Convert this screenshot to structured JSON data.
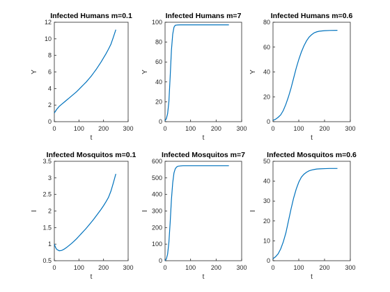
{
  "chart_data": [
    {
      "type": "line",
      "title": "Infected Humans m=0.1",
      "xlabel": "t",
      "ylabel": "Y",
      "xlim": [
        0,
        300
      ],
      "ylim": [
        0,
        12
      ],
      "xticks": [
        0,
        100,
        200,
        300
      ],
      "yticks": [
        0,
        2,
        4,
        6,
        8,
        10,
        12
      ],
      "color": "#0072bd",
      "x": [
        0,
        10,
        20,
        30,
        40,
        50,
        60,
        70,
        80,
        90,
        100,
        110,
        120,
        130,
        140,
        150,
        160,
        170,
        180,
        190,
        200,
        210,
        220,
        230,
        240,
        250
      ],
      "y": [
        1.05,
        1.5,
        1.85,
        2.1,
        2.35,
        2.6,
        2.85,
        3.1,
        3.35,
        3.6,
        3.9,
        4.2,
        4.5,
        4.8,
        5.15,
        5.5,
        5.9,
        6.3,
        6.75,
        7.2,
        7.7,
        8.2,
        8.75,
        9.35,
        10.2,
        11.1
      ]
    },
    {
      "type": "line",
      "title": "Infected Humans m=7",
      "xlabel": "t",
      "ylabel": "Y",
      "xlim": [
        0,
        300
      ],
      "ylim": [
        0,
        100
      ],
      "xticks": [
        0,
        100,
        200,
        300
      ],
      "yticks": [
        0,
        20,
        40,
        60,
        80,
        100
      ],
      "color": "#0072bd",
      "x": [
        0,
        5,
        10,
        15,
        20,
        25,
        30,
        35,
        40,
        50,
        60,
        80,
        100,
        150,
        200,
        250
      ],
      "y": [
        1,
        3,
        8,
        20,
        45,
        72,
        88,
        95,
        97,
        97.3,
        97.4,
        97.4,
        97.4,
        97.4,
        97.4,
        97.4
      ]
    },
    {
      "type": "line",
      "title": "Infected Humans m=0.6",
      "xlabel": "t",
      "ylabel": "Y",
      "xlim": [
        0,
        300
      ],
      "ylim": [
        0,
        80
      ],
      "xticks": [
        0,
        100,
        200,
        300
      ],
      "yticks": [
        0,
        20,
        40,
        60,
        80
      ],
      "color": "#0072bd",
      "x": [
        0,
        10,
        20,
        30,
        40,
        50,
        60,
        70,
        80,
        90,
        100,
        110,
        120,
        130,
        140,
        150,
        160,
        170,
        180,
        200,
        220,
        250
      ],
      "y": [
        1,
        2,
        3.5,
        5.5,
        9,
        14,
        20,
        27,
        35,
        43,
        50,
        56,
        61,
        65,
        68,
        70,
        71.5,
        72.3,
        72.8,
        73.2,
        73.4,
        73.5
      ]
    },
    {
      "type": "line",
      "title": "Infected Mosquitos m=0.1",
      "xlabel": "t",
      "ylabel": "I",
      "xlim": [
        0,
        300
      ],
      "ylim": [
        0.5,
        3.5
      ],
      "xticks": [
        0,
        100,
        200,
        300
      ],
      "yticks": [
        0.5,
        1,
        1.5,
        2,
        2.5,
        3,
        3.5
      ],
      "color": "#0072bd",
      "x": [
        0,
        5,
        10,
        20,
        30,
        40,
        50,
        60,
        70,
        80,
        90,
        100,
        110,
        120,
        130,
        140,
        150,
        160,
        170,
        180,
        190,
        200,
        210,
        220,
        230,
        240,
        250
      ],
      "y": [
        1.0,
        0.9,
        0.84,
        0.8,
        0.81,
        0.85,
        0.9,
        0.96,
        1.02,
        1.09,
        1.16,
        1.24,
        1.32,
        1.4,
        1.48,
        1.57,
        1.66,
        1.75,
        1.85,
        1.95,
        2.05,
        2.16,
        2.28,
        2.41,
        2.6,
        2.85,
        3.12
      ]
    },
    {
      "type": "line",
      "title": "Infected Mosquitos m=7",
      "xlabel": "t",
      "ylabel": "I",
      "xlim": [
        0,
        300
      ],
      "ylim": [
        0,
        600
      ],
      "xticks": [
        0,
        100,
        200,
        300
      ],
      "yticks": [
        0,
        100,
        200,
        300,
        400,
        500,
        600
      ],
      "color": "#0072bd",
      "x": [
        0,
        5,
        10,
        15,
        20,
        25,
        30,
        35,
        40,
        45,
        50,
        60,
        70,
        80,
        100,
        150,
        200,
        250
      ],
      "y": [
        1,
        10,
        40,
        110,
        230,
        370,
        470,
        530,
        555,
        565,
        570,
        572,
        573,
        573,
        573,
        573,
        573,
        573
      ]
    },
    {
      "type": "line",
      "title": "Infected Mosquitos m=0.6",
      "xlabel": "t",
      "ylabel": "I",
      "xlim": [
        0,
        300
      ],
      "ylim": [
        0,
        50
      ],
      "xticks": [
        0,
        100,
        200,
        300
      ],
      "yticks": [
        0,
        10,
        20,
        30,
        40,
        50
      ],
      "color": "#0072bd",
      "x": [
        0,
        10,
        20,
        30,
        40,
        50,
        60,
        70,
        80,
        90,
        100,
        110,
        120,
        130,
        140,
        150,
        160,
        170,
        180,
        200,
        220,
        250
      ],
      "y": [
        1,
        2,
        3.5,
        6,
        9.5,
        14,
        20,
        26,
        31.5,
        36,
        39.5,
        42,
        43.5,
        44.5,
        45.2,
        45.6,
        45.9,
        46.1,
        46.2,
        46.3,
        46.4,
        46.4
      ]
    }
  ]
}
